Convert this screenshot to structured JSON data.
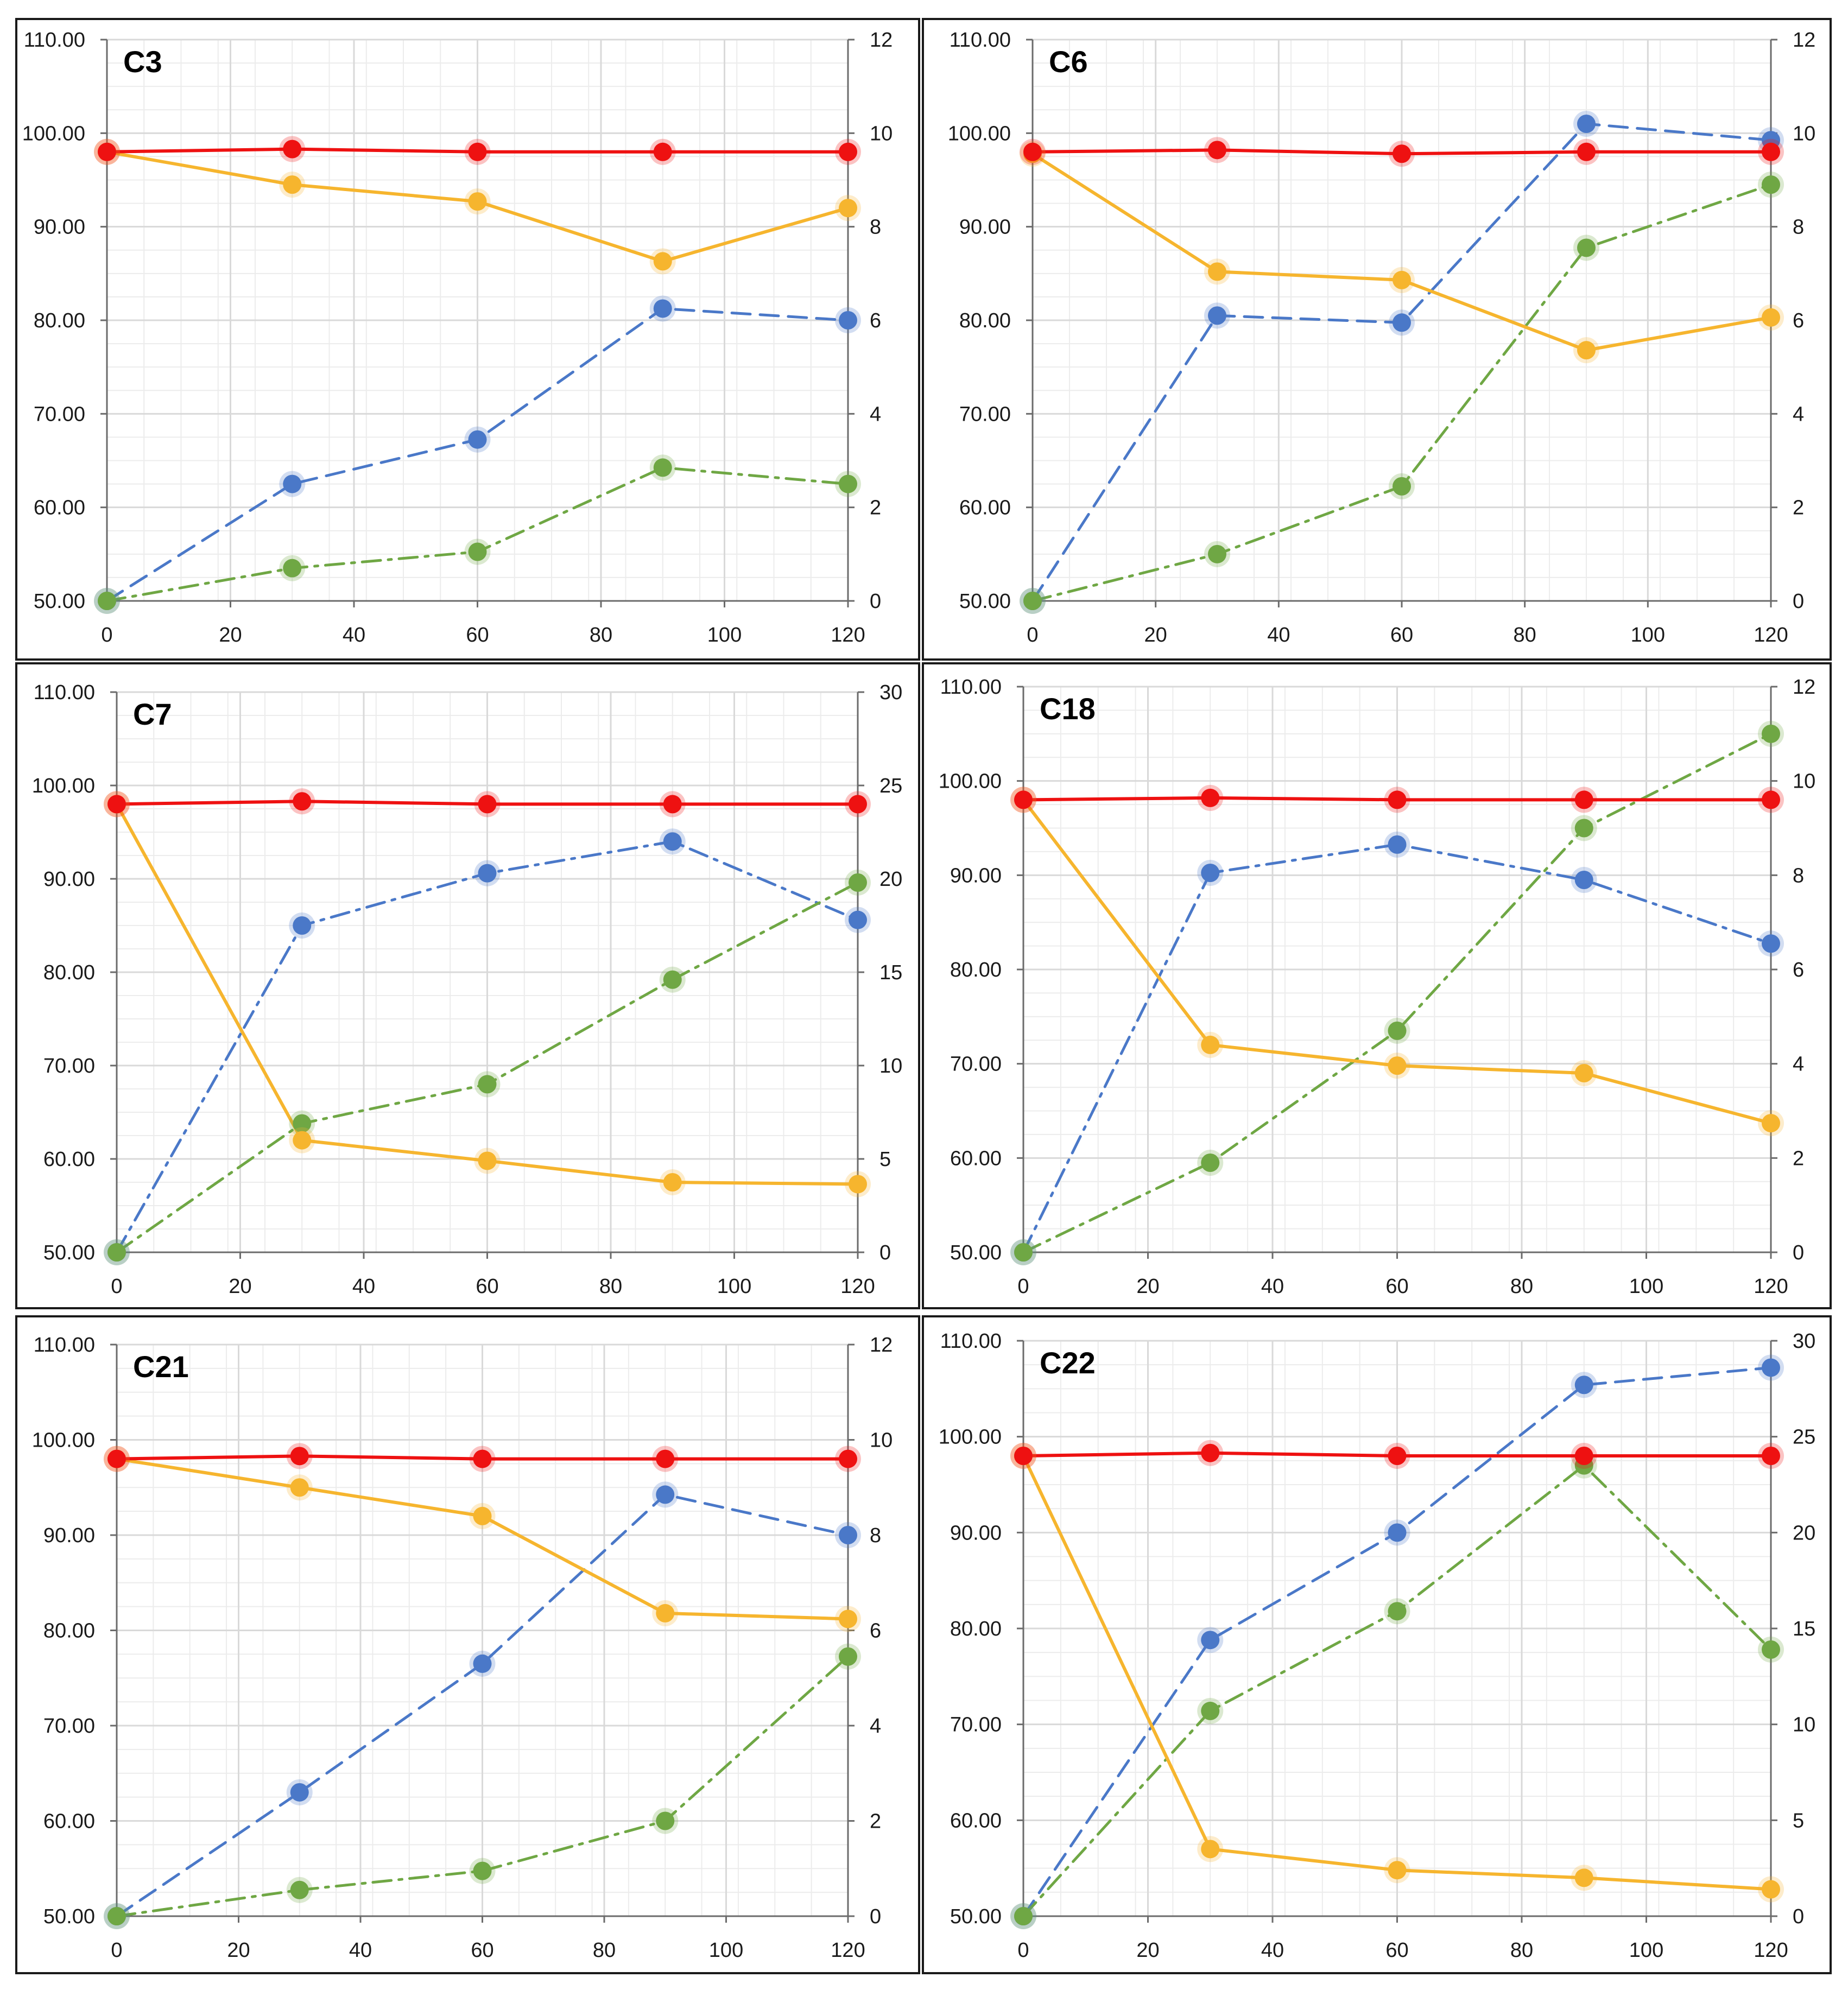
{
  "figure": {
    "colors": {
      "red": "#ee1111",
      "orange": "#f6b52e",
      "blue": "#4a78c8",
      "green": "#6fa744",
      "grid": "#d9d9d9",
      "frame": "#1a1a1a"
    }
  },
  "chart_data": [
    {
      "type": "line",
      "title": "C3",
      "x": [
        0,
        30,
        60,
        90,
        120
      ],
      "xlim": [
        0,
        120
      ],
      "x_ticks": [
        "0",
        "20",
        "40",
        "60",
        "80",
        "100",
        "120"
      ],
      "y_left_ticks": [
        "50.00",
        "60.00",
        "70.00",
        "80.00",
        "90.00",
        "100.00",
        "110.00"
      ],
      "y_right_ticks": [
        "0",
        "2",
        "4",
        "6",
        "8",
        "10",
        "12"
      ],
      "ylim_left": [
        50,
        110
      ],
      "ylim_right": [
        0,
        12
      ],
      "series": [
        {
          "name": "red",
          "axis": "left",
          "style": "solid",
          "values": [
            98.0,
            98.3,
            98.0,
            98.0,
            98.0
          ]
        },
        {
          "name": "orange",
          "axis": "left",
          "style": "solid",
          "values": [
            98.0,
            94.5,
            92.7,
            86.3,
            92.0
          ]
        },
        {
          "name": "blue",
          "axis": "right",
          "style": "dashed",
          "values": [
            0.0,
            2.5,
            3.45,
            6.25,
            6.0
          ]
        },
        {
          "name": "green",
          "axis": "right",
          "style": "dashdot",
          "values": [
            0.0,
            0.7,
            1.05,
            2.85,
            2.5
          ]
        }
      ]
    },
    {
      "type": "line",
      "title": "C6",
      "x": [
        0,
        30,
        60,
        90,
        120
      ],
      "xlim": [
        0,
        120
      ],
      "x_ticks": [
        "0",
        "20",
        "40",
        "60",
        "80",
        "100",
        "120"
      ],
      "y_left_ticks": [
        "50.00",
        "60.00",
        "70.00",
        "80.00",
        "90.00",
        "100.00",
        "110.00"
      ],
      "y_right_ticks": [
        "0",
        "2",
        "4",
        "6",
        "8",
        "10",
        "12"
      ],
      "ylim_left": [
        50,
        110
      ],
      "ylim_right": [
        0,
        12
      ],
      "series": [
        {
          "name": "red",
          "axis": "left",
          "style": "solid",
          "values": [
            98.0,
            98.2,
            97.8,
            98.0,
            98.0
          ]
        },
        {
          "name": "orange",
          "axis": "left",
          "style": "solid",
          "values": [
            97.8,
            85.2,
            84.3,
            76.8,
            80.3
          ]
        },
        {
          "name": "blue",
          "axis": "right",
          "style": "dashed",
          "values": [
            0.0,
            6.1,
            5.95,
            10.2,
            9.85
          ]
        },
        {
          "name": "green",
          "axis": "right",
          "style": "dashdot",
          "values": [
            0.0,
            1.0,
            2.45,
            7.55,
            8.9
          ]
        }
      ]
    },
    {
      "type": "line",
      "title": "C7",
      "x": [
        0,
        30,
        60,
        90,
        120
      ],
      "xlim": [
        0,
        120
      ],
      "x_ticks": [
        "0",
        "20",
        "40",
        "60",
        "80",
        "100",
        "120"
      ],
      "y_left_ticks": [
        "50.00",
        "60.00",
        "70.00",
        "80.00",
        "90.00",
        "100.00",
        "110.00"
      ],
      "y_right_ticks": [
        "0",
        "5",
        "10",
        "15",
        "20",
        "25",
        "30"
      ],
      "ylim_left": [
        50,
        110
      ],
      "ylim_right": [
        0,
        30
      ],
      "series": [
        {
          "name": "red",
          "axis": "left",
          "style": "solid",
          "values": [
            98.0,
            98.3,
            98.0,
            98.0,
            98.0
          ]
        },
        {
          "name": "orange",
          "axis": "left",
          "style": "solid",
          "values": [
            98.0,
            62.0,
            59.8,
            57.5,
            57.3
          ]
        },
        {
          "name": "blue",
          "axis": "right",
          "style": "dashdot",
          "values": [
            0.0,
            17.5,
            20.3,
            22.0,
            17.8
          ]
        },
        {
          "name": "green",
          "axis": "right",
          "style": "dashdot",
          "values": [
            0.0,
            6.9,
            9.0,
            14.6,
            19.8
          ]
        }
      ]
    },
    {
      "type": "line",
      "title": "C18",
      "x": [
        0,
        30,
        60,
        90,
        120
      ],
      "xlim": [
        0,
        120
      ],
      "x_ticks": [
        "0",
        "20",
        "40",
        "60",
        "80",
        "100",
        "120"
      ],
      "y_left_ticks": [
        "50.00",
        "60.00",
        "70.00",
        "80.00",
        "90.00",
        "100.00",
        "110.00"
      ],
      "y_right_ticks": [
        "0",
        "2",
        "4",
        "6",
        "8",
        "10",
        "12"
      ],
      "ylim_left": [
        50,
        110
      ],
      "ylim_right": [
        0,
        12
      ],
      "series": [
        {
          "name": "red",
          "axis": "left",
          "style": "solid",
          "values": [
            98.0,
            98.2,
            98.0,
            98.0,
            98.0
          ]
        },
        {
          "name": "orange",
          "axis": "left",
          "style": "solid",
          "values": [
            98.0,
            72.0,
            69.8,
            69.0,
            63.7
          ]
        },
        {
          "name": "blue",
          "axis": "right",
          "style": "dashdot",
          "values": [
            0.0,
            8.05,
            8.65,
            7.9,
            6.55
          ]
        },
        {
          "name": "green",
          "axis": "right",
          "style": "dashdot",
          "values": [
            0.0,
            1.9,
            4.7,
            9.0,
            11.0
          ]
        }
      ]
    },
    {
      "type": "line",
      "title": "C21",
      "x": [
        0,
        30,
        60,
        90,
        120
      ],
      "xlim": [
        0,
        120
      ],
      "x_ticks": [
        "0",
        "20",
        "40",
        "60",
        "80",
        "100",
        "120"
      ],
      "y_left_ticks": [
        "50.00",
        "60.00",
        "70.00",
        "80.00",
        "90.00",
        "100.00",
        "110.00"
      ],
      "y_right_ticks": [
        "0",
        "2",
        "4",
        "6",
        "8",
        "10",
        "12"
      ],
      "ylim_left": [
        50,
        110
      ],
      "ylim_right": [
        0,
        12
      ],
      "series": [
        {
          "name": "red",
          "axis": "left",
          "style": "solid",
          "values": [
            98.0,
            98.3,
            98.0,
            98.0,
            98.0
          ]
        },
        {
          "name": "orange",
          "axis": "left",
          "style": "solid",
          "values": [
            98.0,
            95.0,
            92.0,
            81.8,
            81.2
          ]
        },
        {
          "name": "blue",
          "axis": "right",
          "style": "dashed",
          "values": [
            0.0,
            2.6,
            5.3,
            8.85,
            8.0
          ]
        },
        {
          "name": "green",
          "axis": "right",
          "style": "dashdot",
          "values": [
            0.0,
            0.55,
            0.95,
            2.0,
            5.45
          ]
        }
      ]
    },
    {
      "type": "line",
      "title": "C22",
      "x": [
        0,
        30,
        60,
        90,
        120
      ],
      "xlim": [
        0,
        120
      ],
      "x_ticks": [
        "0",
        "20",
        "40",
        "60",
        "80",
        "100",
        "120"
      ],
      "y_left_ticks": [
        "50.00",
        "60.00",
        "70.00",
        "80.00",
        "90.00",
        "100.00",
        "110.00"
      ],
      "y_right_ticks": [
        "0",
        "5",
        "10",
        "15",
        "20",
        "25",
        "30"
      ],
      "ylim_left": [
        50,
        110
      ],
      "ylim_right": [
        0,
        30
      ],
      "series": [
        {
          "name": "red",
          "axis": "left",
          "style": "solid",
          "values": [
            98.0,
            98.3,
            98.0,
            98.0,
            98.0
          ]
        },
        {
          "name": "orange",
          "axis": "left",
          "style": "solid",
          "values": [
            98.0,
            57.0,
            54.8,
            54.0,
            52.8
          ]
        },
        {
          "name": "blue",
          "axis": "right",
          "style": "dashed",
          "values": [
            0.0,
            14.4,
            20.0,
            27.7,
            28.6
          ]
        },
        {
          "name": "green",
          "axis": "right",
          "style": "dashdot",
          "values": [
            0.0,
            10.7,
            15.9,
            23.5,
            13.9
          ]
        }
      ]
    }
  ]
}
